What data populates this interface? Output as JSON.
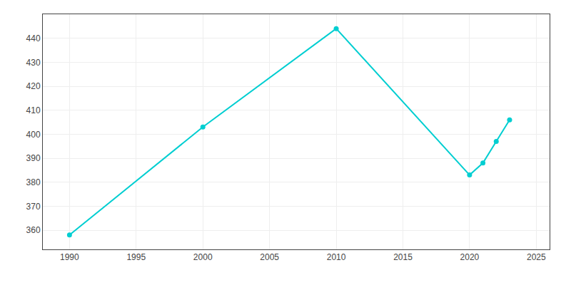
{
  "chart_data": {
    "type": "line",
    "x": [
      1990,
      2000,
      2010,
      2020,
      2021,
      2022,
      2023
    ],
    "values": [
      358,
      403,
      444,
      383,
      388,
      397,
      406
    ],
    "color": "#00CED1",
    "marker": "circle",
    "line_style": "solid",
    "xlim": [
      1988,
      2026
    ],
    "ylim": [
      352,
      450
    ],
    "xticks": [
      1990,
      1995,
      2000,
      2005,
      2010,
      2015,
      2020,
      2025
    ],
    "yticks": [
      360,
      370,
      380,
      390,
      400,
      410,
      420,
      430,
      440
    ],
    "grid": true
  }
}
